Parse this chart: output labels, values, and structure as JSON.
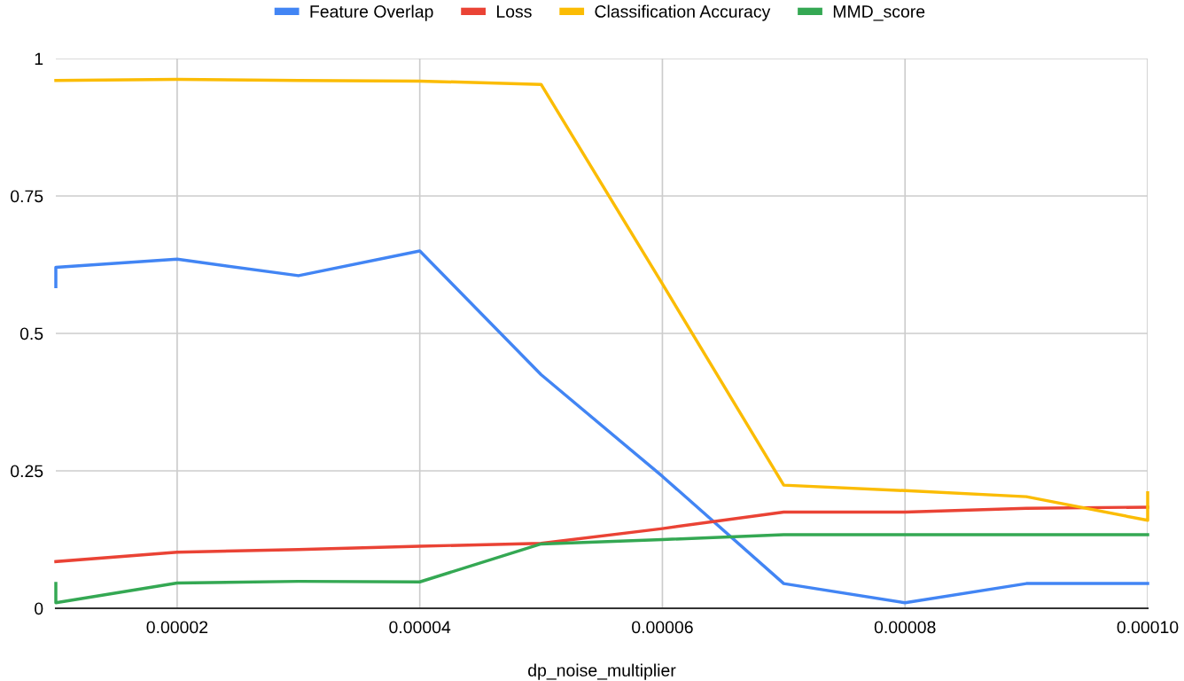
{
  "chart_data": {
    "type": "line",
    "xlabel": "dp_noise_multiplier",
    "xlim": [
      1e-05,
      0.0001
    ],
    "ylim": [
      0,
      1
    ],
    "xticks": [
      {
        "value": 2e-05,
        "label": "0.00002"
      },
      {
        "value": 4e-05,
        "label": "0.00004"
      },
      {
        "value": 6e-05,
        "label": "0.00006"
      },
      {
        "value": 8e-05,
        "label": "0.00008"
      },
      {
        "value": 0.0001,
        "label": "0.00010"
      }
    ],
    "yticks": [
      0,
      0.25,
      0.5,
      0.75,
      1
    ],
    "grid": true,
    "legend": "top",
    "marker": "none",
    "line_style": "solid",
    "series": [
      {
        "name": "Feature Overlap",
        "color": "#4285f4",
        "x": [
          1e-05,
          1e-05,
          2e-05,
          3e-05,
          4e-05,
          5e-05,
          6e-05,
          7e-05,
          8e-05,
          9e-05,
          0.0001
        ],
        "values": [
          0.585,
          0.62,
          0.635,
          0.605,
          0.65,
          0.425,
          0.24,
          0.045,
          0.01,
          0.045,
          0.045
        ]
      },
      {
        "name": "Loss",
        "color": "#ea4335",
        "x": [
          1e-05,
          2e-05,
          3e-05,
          4e-05,
          5e-05,
          6e-05,
          7e-05,
          8e-05,
          9e-05,
          0.0001
        ],
        "values": [
          0.085,
          0.102,
          0.107,
          0.113,
          0.118,
          0.145,
          0.175,
          0.175,
          0.182,
          0.184
        ]
      },
      {
        "name": "Classification Accuracy",
        "color": "#fbbc04",
        "x": [
          1e-05,
          2e-05,
          3e-05,
          4e-05,
          5e-05,
          6e-05,
          7e-05,
          8e-05,
          9e-05,
          0.0001,
          0.0001
        ],
        "values": [
          0.96,
          0.962,
          0.96,
          0.959,
          0.953,
          0.59,
          0.224,
          0.214,
          0.203,
          0.16,
          0.21
        ]
      },
      {
        "name": "MMD_score",
        "color": "#34a853",
        "x": [
          1e-05,
          1e-05,
          2e-05,
          3e-05,
          4e-05,
          5e-05,
          6e-05,
          7e-05,
          8e-05,
          9e-05,
          0.0001
        ],
        "values": [
          0.045,
          0.01,
          0.046,
          0.049,
          0.048,
          0.117,
          0.125,
          0.134,
          0.134,
          0.134,
          0.134
        ]
      }
    ]
  }
}
